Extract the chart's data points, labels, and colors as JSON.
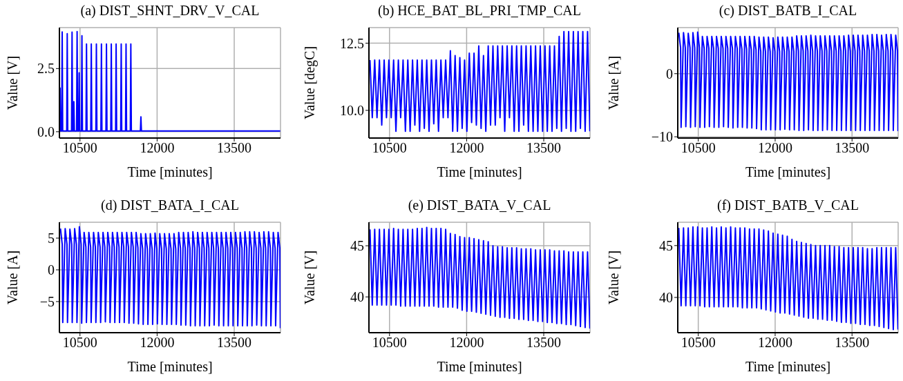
{
  "chart_data": [
    {
      "type": "line",
      "title": "(a) DIST_SHNT_DRV_V_CAL",
      "xlabel": "Time [minutes]",
      "ylabel": "Value [V]",
      "xlim": [
        10100,
        14400
      ],
      "xticks": [
        10500,
        12000,
        13500
      ],
      "ylim": [
        -0.25,
        4.12
      ],
      "yticks": [
        {
          "value": 0,
          "label": "0.0"
        },
        {
          "value": 2.5,
          "label": "2.5"
        }
      ],
      "grid": true,
      "x": [
        10103,
        10113,
        10123,
        10144,
        10154,
        10164,
        10242,
        10252,
        10262,
        10336,
        10346,
        10356,
        10371,
        10381,
        10391,
        10434,
        10444,
        10454,
        10474,
        10484,
        10494,
        10528,
        10538,
        10548,
        10617,
        10627,
        10637,
        10710,
        10720,
        10730,
        10809,
        10819,
        10829,
        10907,
        10917,
        10927,
        11005,
        11015,
        11025,
        11099,
        11109,
        11119,
        11193,
        11203,
        11213,
        11292,
        11302,
        11312,
        11386,
        11396,
        11406,
        11479,
        11489,
        11499,
        11675,
        11685,
        11695,
        14395
      ],
      "series": [
        {
          "color": "#0000ff",
          "values": [
            0.03,
            1.73,
            0.03,
            0.03,
            3.95,
            0.03,
            0.03,
            3.88,
            0.03,
            0.03,
            3.94,
            0.03,
            0.03,
            1.19,
            0.03,
            0.03,
            3.96,
            0.03,
            0.03,
            2.33,
            0.03,
            0.03,
            3.8,
            0.03,
            0.03,
            3.47,
            0.03,
            0.03,
            3.47,
            0.03,
            0.03,
            3.47,
            0.03,
            0.03,
            3.47,
            0.03,
            0.03,
            3.47,
            0.03,
            0.03,
            3.47,
            0.03,
            0.03,
            3.47,
            0.03,
            0.03,
            3.47,
            0.03,
            0.03,
            3.47,
            0.03,
            0.03,
            3.47,
            0.03,
            0.03,
            0.59,
            0.03,
            0.03
          ]
        }
      ]
    },
    {
      "type": "line",
      "title": "(b) HCE_BAT_BL_PRI_TMP_CAL",
      "xlabel": "Time [minutes]",
      "ylabel": "Value [degC]",
      "xlim": [
        10100,
        14400
      ],
      "xticks": [
        10500,
        12000,
        13500
      ],
      "ylim": [
        8.97,
        13.08
      ],
      "yticks": [
        {
          "value": 10,
          "label": "10.0"
        },
        {
          "value": 12.5,
          "label": "12.5"
        }
      ],
      "grid": true,
      "x": [
        10120,
        10165,
        10212,
        10257,
        10304,
        10349,
        10396,
        10441,
        10488,
        10533,
        10580,
        10625,
        10672,
        10717,
        10764,
        10809,
        10856,
        10901,
        10948,
        10993,
        11040,
        11085,
        11132,
        11177,
        11224,
        11269,
        11316,
        11361,
        11408,
        11453,
        11500,
        11545,
        11592,
        11637,
        11684,
        11729,
        11776,
        11821,
        11868,
        11913,
        11960,
        12005,
        12052,
        12097,
        12144,
        12189,
        12236,
        12281,
        12328,
        12373,
        12420,
        12465,
        12512,
        12557,
        12604,
        12649,
        12696,
        12741,
        12788,
        12833,
        12880,
        12925,
        12972,
        13017,
        13064,
        13109,
        13156,
        13201,
        13248,
        13293,
        13340,
        13385,
        13432,
        13477,
        13524,
        13569,
        13616,
        13661,
        13708,
        13753,
        13800,
        13845,
        13892,
        13937,
        13984,
        14029,
        14076,
        14121,
        14168,
        14213,
        14260,
        14305,
        14352,
        14397
      ],
      "series": [
        {
          "color": "#0000ff",
          "values": [
            11.87,
            9.73,
            11.87,
            9.73,
            11.87,
            9.45,
            11.87,
            9.73,
            11.87,
            9.73,
            11.87,
            9.22,
            11.87,
            9.73,
            11.87,
            9.22,
            11.87,
            9.22,
            11.87,
            9.45,
            11.87,
            9.22,
            11.87,
            9.33,
            11.87,
            9.22,
            11.87,
            9.5,
            11.87,
            9.22,
            11.87,
            9.73,
            11.87,
            9.73,
            12.22,
            9.22,
            12.04,
            9.22,
            11.96,
            9.33,
            11.87,
            9.22,
            12.13,
            9.55,
            12.13,
            9.45,
            12.4,
            9.33,
            12.04,
            9.22,
            12.4,
            9.45,
            12.4,
            9.45,
            12.4,
            9.73,
            12.4,
            9.22,
            12.4,
            9.73,
            12.4,
            9.22,
            12.4,
            9.22,
            12.4,
            9.45,
            12.4,
            9.22,
            12.4,
            9.22,
            12.4,
            9.22,
            12.4,
            9.22,
            12.4,
            9.22,
            12.4,
            9.22,
            12.4,
            9.33,
            12.75,
            9.22,
            12.93,
            9.33,
            12.93,
            9.22,
            12.93,
            9.22,
            12.93,
            9.33,
            12.93,
            9.22,
            12.93,
            9.22
          ]
        }
      ]
    },
    {
      "type": "line",
      "title": "(c) DIST_BATB_I_CAL",
      "xlabel": "Time [minutes]",
      "ylabel": "Value [A]",
      "xlim": [
        10100,
        14400
      ],
      "xticks": [
        10500,
        12000,
        13500
      ],
      "ylim": [
        -10.2,
        7.3
      ],
      "yticks": [
        {
          "value": -10,
          "label": "−10"
        },
        0
      ],
      "grid": true,
      "x": [
        10120,
        10155,
        10165,
        10212,
        10247,
        10257,
        10304,
        10339,
        10349,
        10396,
        10431,
        10441,
        10488,
        10523,
        10533,
        10580,
        10615,
        10625,
        10672,
        10707,
        10717,
        10764,
        10799,
        10809,
        10856,
        10891,
        10901,
        10948,
        10983,
        10993,
        11040,
        11075,
        11085,
        11132,
        11167,
        11177,
        11224,
        11259,
        11269,
        11316,
        11351,
        11361,
        11408,
        11443,
        11453,
        11500,
        11535,
        11545,
        11592,
        11627,
        11637,
        11684,
        11719,
        11729,
        11776,
        11811,
        11821,
        11868,
        11903,
        11913,
        11960,
        11995,
        12005,
        12052,
        12087,
        12097,
        12144,
        12179,
        12189,
        12236,
        12271,
        12281,
        12328,
        12363,
        12373,
        12420,
        12455,
        12465,
        12512,
        12547,
        12557,
        12604,
        12639,
        12649,
        12696,
        12731,
        12741,
        12788,
        12823,
        12833,
        12880,
        12915,
        12925,
        12972,
        13007,
        13017,
        13064,
        13099,
        13109,
        13156,
        13191,
        13201,
        13248,
        13283,
        13293,
        13340,
        13375,
        13385,
        13432,
        13467,
        13477,
        13524,
        13559,
        13569,
        13616,
        13651,
        13661,
        13708,
        13743,
        13753,
        13800,
        13835,
        13845,
        13892,
        13927,
        13937,
        13984,
        14019,
        14029,
        14076,
        14111,
        14121,
        14168,
        14203,
        14213,
        14260,
        14295,
        14305,
        14352,
        14387,
        14397
      ],
      "series": [
        {
          "color": "#0000ff",
          "values": [
            6.5,
            4.1,
            -8.5,
            6.5,
            4.1,
            -8.4,
            6.4,
            4.1,
            -8.5,
            6.5,
            4.1,
            -8.4,
            6.6,
            4.1,
            -8.5,
            5.9,
            4.0,
            -8.5,
            5.9,
            4.0,
            -8.4,
            5.9,
            4.0,
            -8.5,
            5.9,
            4.0,
            -8.5,
            5.9,
            4.0,
            -8.4,
            5.9,
            4.0,
            -8.5,
            5.9,
            4.0,
            -8.6,
            5.9,
            4.0,
            -8.5,
            5.9,
            3.9,
            -8.5,
            5.9,
            3.9,
            -8.6,
            5.9,
            3.8,
            -8.6,
            5.9,
            3.8,
            -8.7,
            5.8,
            3.5,
            -8.9,
            5.8,
            3.5,
            -8.9,
            5.8,
            3.5,
            -8.9,
            5.7,
            3.5,
            -8.9,
            5.8,
            3.5,
            -8.9,
            5.8,
            3.5,
            -8.8,
            5.8,
            3.5,
            -8.9,
            5.8,
            3.5,
            -8.9,
            6.0,
            3.6,
            -9.0,
            6.0,
            3.6,
            -9.0,
            6.0,
            3.6,
            -8.9,
            6.1,
            3.6,
            -9.0,
            6.0,
            3.6,
            -9.0,
            6.0,
            3.6,
            -9.0,
            6.0,
            3.6,
            -8.9,
            6.0,
            3.6,
            -9.0,
            6.0,
            3.6,
            -9.0,
            6.0,
            3.6,
            -9.0,
            6.0,
            3.6,
            -9.0,
            6.1,
            3.6,
            -9.0,
            6.1,
            3.6,
            -9.0,
            6.1,
            3.6,
            -9.0,
            6.1,
            3.6,
            -9.0,
            6.1,
            3.6,
            -9.0,
            6.2,
            3.6,
            -9.0,
            6.2,
            3.6,
            -9.0,
            6.1,
            3.6,
            -9.0,
            6.2,
            3.6,
            -9.0,
            6.2,
            3.6,
            -9.0,
            6.1,
            3.6,
            -9.1
          ]
        }
      ]
    },
    {
      "type": "line",
      "title": "(d) DIST_BATA_I_CAL",
      "xlabel": "Time [minutes]",
      "ylabel": "Value [A]",
      "xlim": [
        10100,
        14400
      ],
      "xticks": [
        10500,
        12000,
        13500
      ],
      "ylim": [
        -9.9,
        7.5
      ],
      "yticks": [
        {
          "value": -5,
          "label": "−5"
        },
        0,
        5
      ],
      "grid": true,
      "x": [
        10120,
        10155,
        10165,
        10212,
        10247,
        10257,
        10304,
        10339,
        10349,
        10396,
        10431,
        10441,
        10488,
        10523,
        10533,
        10580,
        10615,
        10625,
        10672,
        10707,
        10717,
        10764,
        10799,
        10809,
        10856,
        10891,
        10901,
        10948,
        10983,
        10993,
        11040,
        11075,
        11085,
        11132,
        11167,
        11177,
        11224,
        11259,
        11269,
        11316,
        11351,
        11361,
        11408,
        11443,
        11453,
        11500,
        11535,
        11545,
        11592,
        11627,
        11637,
        11684,
        11719,
        11729,
        11776,
        11811,
        11821,
        11868,
        11903,
        11913,
        11960,
        11995,
        12005,
        12052,
        12087,
        12097,
        12144,
        12179,
        12189,
        12236,
        12271,
        12281,
        12328,
        12363,
        12373,
        12420,
        12455,
        12465,
        12512,
        12547,
        12557,
        12604,
        12639,
        12649,
        12696,
        12731,
        12741,
        12788,
        12823,
        12833,
        12880,
        12915,
        12925,
        12972,
        13007,
        13017,
        13064,
        13099,
        13109,
        13156,
        13191,
        13201,
        13248,
        13283,
        13293,
        13340,
        13375,
        13385,
        13432,
        13467,
        13477,
        13524,
        13559,
        13569,
        13616,
        13651,
        13661,
        13708,
        13743,
        13753,
        13800,
        13835,
        13845,
        13892,
        13927,
        13937,
        13984,
        14019,
        14029,
        14076,
        14111,
        14121,
        14168,
        14203,
        14213,
        14260,
        14295,
        14305,
        14352,
        14387,
        14397
      ],
      "series": [
        {
          "color": "#0000ff",
          "values": [
            6.5,
            4.0,
            -8.3,
            6.5,
            4.0,
            -8.3,
            6.4,
            4.0,
            -8.3,
            6.5,
            4.0,
            -8.3,
            6.8,
            4.0,
            -8.4,
            5.9,
            3.6,
            -8.3,
            5.9,
            3.6,
            -8.3,
            5.9,
            3.6,
            -8.3,
            5.9,
            3.6,
            -8.3,
            5.9,
            3.6,
            -8.2,
            5.9,
            3.6,
            -8.3,
            5.9,
            3.6,
            -8.3,
            5.9,
            3.6,
            -8.3,
            5.9,
            3.6,
            -8.3,
            5.9,
            3.6,
            -8.4,
            5.9,
            3.6,
            -8.4,
            5.9,
            3.5,
            -8.5,
            5.7,
            3.3,
            -8.6,
            5.7,
            3.3,
            -8.6,
            5.7,
            3.3,
            -8.6,
            5.8,
            3.3,
            -8.5,
            5.7,
            3.3,
            -8.6,
            5.7,
            3.3,
            -8.6,
            5.7,
            3.3,
            -8.6,
            5.7,
            3.3,
            -8.6,
            5.9,
            3.4,
            -8.7,
            5.9,
            3.4,
            -8.7,
            5.9,
            3.4,
            -8.8,
            6.0,
            3.4,
            -8.8,
            5.9,
            3.4,
            -8.8,
            5.9,
            3.4,
            -8.8,
            5.9,
            3.4,
            -8.8,
            5.9,
            3.4,
            -8.7,
            5.9,
            3.4,
            -8.8,
            5.9,
            3.4,
            -8.8,
            5.9,
            3.4,
            -8.8,
            5.9,
            3.4,
            -8.8,
            5.9,
            3.4,
            -8.8,
            5.9,
            3.4,
            -8.8,
            6.0,
            3.4,
            -8.8,
            6.0,
            3.4,
            -8.8,
            6.0,
            3.4,
            -8.7,
            5.9,
            3.4,
            -8.8,
            6.0,
            3.4,
            -8.8,
            6.0,
            3.4,
            -8.8,
            5.9,
            3.4,
            -8.8,
            5.9,
            3.4,
            -9.2
          ]
        }
      ]
    },
    {
      "type": "line",
      "title": "(e) DIST_BATA_V_CAL",
      "xlabel": "Time [minutes]",
      "ylabel": "Value [V]",
      "xlim": [
        10100,
        14400
      ],
      "xticks": [
        10500,
        12000,
        13500
      ],
      "ylim": [
        36.5,
        47.3
      ],
      "yticks": [
        40,
        45
      ],
      "grid": true,
      "x": [
        10120,
        10165,
        10212,
        10257,
        10304,
        10349,
        10396,
        10441,
        10488,
        10533,
        10580,
        10625,
        10672,
        10717,
        10764,
        10809,
        10856,
        10901,
        10948,
        10993,
        11040,
        11085,
        11132,
        11177,
        11224,
        11269,
        11316,
        11361,
        11408,
        11453,
        11500,
        11545,
        11592,
        11637,
        11684,
        11729,
        11776,
        11821,
        11868,
        11913,
        11960,
        12005,
        12052,
        12097,
        12144,
        12189,
        12236,
        12281,
        12328,
        12373,
        12420,
        12465,
        12512,
        12557,
        12604,
        12649,
        12696,
        12741,
        12788,
        12833,
        12880,
        12925,
        12972,
        13017,
        13064,
        13109,
        13156,
        13201,
        13248,
        13293,
        13340,
        13385,
        13432,
        13477,
        13524,
        13569,
        13616,
        13661,
        13708,
        13753,
        13800,
        13845,
        13892,
        13937,
        13984,
        14029,
        14076,
        14121,
        14168,
        14213,
        14260,
        14305,
        14352,
        14397
      ],
      "series": [
        {
          "color": "#0000ff",
          "values": [
            46.6,
            39.2,
            46.6,
            39.2,
            46.6,
            39.2,
            46.6,
            39.2,
            46.6,
            39.2,
            46.7,
            39.2,
            46.6,
            39.1,
            46.6,
            39.1,
            46.6,
            39.1,
            46.6,
            39.1,
            46.7,
            39.1,
            46.7,
            39.1,
            46.8,
            39.1,
            46.7,
            39.1,
            46.7,
            39.0,
            46.7,
            39.0,
            46.6,
            39.0,
            46.2,
            39.0,
            46.1,
            38.9,
            45.9,
            38.7,
            45.8,
            38.6,
            45.8,
            38.6,
            45.7,
            38.5,
            45.6,
            38.4,
            45.5,
            38.3,
            45.4,
            38.2,
            45.0,
            38.1,
            44.9,
            38.0,
            44.9,
            38.0,
            44.8,
            37.9,
            44.8,
            37.9,
            44.8,
            37.8,
            44.7,
            37.8,
            44.7,
            37.7,
            44.7,
            37.7,
            44.6,
            37.6,
            44.6,
            37.6,
            44.6,
            37.5,
            44.6,
            37.5,
            44.5,
            37.4,
            44.5,
            37.4,
            44.5,
            37.3,
            44.4,
            37.3,
            44.4,
            37.2,
            44.4,
            37.1,
            44.4,
            37.0,
            44.4,
            36.9
          ]
        }
      ]
    },
    {
      "type": "line",
      "title": "(f) DIST_BATB_V_CAL",
      "xlabel": "Time [minutes]",
      "ylabel": "Value [V]",
      "xlim": [
        10100,
        14400
      ],
      "xticks": [
        10500,
        12000,
        13500
      ],
      "ylim": [
        36.6,
        47.25
      ],
      "yticks": [
        40,
        45
      ],
      "grid": true,
      "x": [
        10120,
        10165,
        10212,
        10257,
        10304,
        10349,
        10396,
        10441,
        10488,
        10533,
        10580,
        10625,
        10672,
        10717,
        10764,
        10809,
        10856,
        10901,
        10948,
        10993,
        11040,
        11085,
        11132,
        11177,
        11224,
        11269,
        11316,
        11361,
        11408,
        11453,
        11500,
        11545,
        11592,
        11637,
        11684,
        11729,
        11776,
        11821,
        11868,
        11913,
        11960,
        12005,
        12052,
        12097,
        12144,
        12189,
        12236,
        12281,
        12328,
        12373,
        12420,
        12465,
        12512,
        12557,
        12604,
        12649,
        12696,
        12741,
        12788,
        12833,
        12880,
        12925,
        12972,
        13017,
        13064,
        13109,
        13156,
        13201,
        13248,
        13293,
        13340,
        13385,
        13432,
        13477,
        13524,
        13569,
        13616,
        13661,
        13708,
        13753,
        13800,
        13845,
        13892,
        13937,
        13984,
        14029,
        14076,
        14121,
        14168,
        14213,
        14260,
        14305,
        14352,
        14397
      ],
      "series": [
        {
          "color": "#0000ff",
          "values": [
            46.7,
            39.2,
            46.7,
            39.2,
            46.7,
            39.2,
            46.8,
            39.2,
            46.8,
            39.2,
            46.7,
            39.1,
            46.7,
            39.1,
            46.8,
            39.1,
            46.7,
            39.1,
            46.8,
            39.1,
            46.7,
            39.1,
            46.8,
            39.1,
            46.7,
            39.1,
            46.7,
            39.0,
            46.7,
            39.0,
            46.6,
            39.0,
            46.6,
            39.0,
            46.6,
            38.9,
            46.5,
            38.8,
            46.4,
            38.7,
            46.2,
            38.6,
            46.1,
            38.5,
            46.0,
            38.5,
            45.9,
            38.4,
            45.6,
            38.3,
            45.4,
            38.2,
            45.3,
            38.1,
            45.2,
            38.0,
            45.1,
            38.0,
            45.0,
            37.9,
            45.0,
            37.9,
            45.0,
            37.8,
            45.0,
            37.8,
            44.9,
            37.7,
            44.9,
            37.6,
            44.8,
            37.6,
            44.8,
            37.5,
            44.8,
            37.5,
            44.8,
            37.4,
            44.8,
            37.4,
            44.7,
            37.3,
            44.7,
            37.3,
            44.8,
            37.2,
            44.8,
            37.1,
            44.8,
            37.0,
            44.8,
            36.9,
            44.8,
            36.9
          ]
        }
      ]
    }
  ]
}
